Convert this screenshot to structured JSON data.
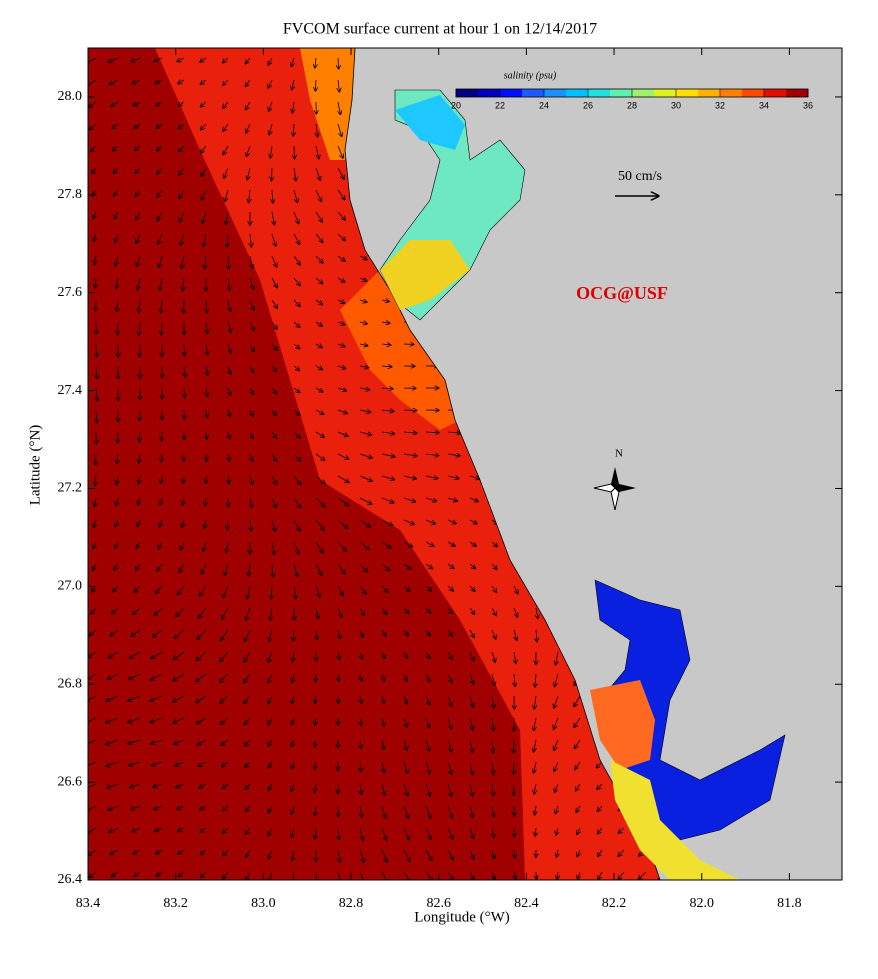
{
  "title": "FVCOM surface current at hour 1 on 12/14/2017",
  "x_label": "Longitude (°W)",
  "y_label": "Latitude (°N)",
  "xlim": [
    83.4,
    81.68
  ],
  "ylim": [
    26.4,
    28.1
  ],
  "xticks": [
    83.4,
    83.2,
    {
      "value": 83,
      "label": "83.0"
    },
    82.8,
    82.6,
    82.4,
    82.2,
    {
      "value": 82,
      "label": "82.0"
    },
    81.8
  ],
  "yticks": [
    26.4,
    26.6,
    26.8,
    {
      "value": 27,
      "label": "27.0"
    },
    27.2,
    27.4,
    27.6,
    27.8,
    {
      "value": 28,
      "label": "28.0"
    }
  ],
  "colorbar": {
    "label": "salinity (psu)",
    "range": [
      20,
      36
    ],
    "ticks": [
      20,
      22,
      24,
      26,
      28,
      30,
      32,
      34,
      36
    ],
    "colors": [
      "#00007f",
      "#0000c0",
      "#0010ff",
      "#1e5aff",
      "#1e90ff",
      "#00c0ff",
      "#20e0e0",
      "#60f0b0",
      "#a0f070",
      "#e0f020",
      "#ffe000",
      "#ffb000",
      "#ff8000",
      "#ff4800",
      "#e01000",
      "#a00000"
    ]
  },
  "scale_label": "50 cm/s",
  "credit": "OCG@USF",
  "compass": "N"
}
